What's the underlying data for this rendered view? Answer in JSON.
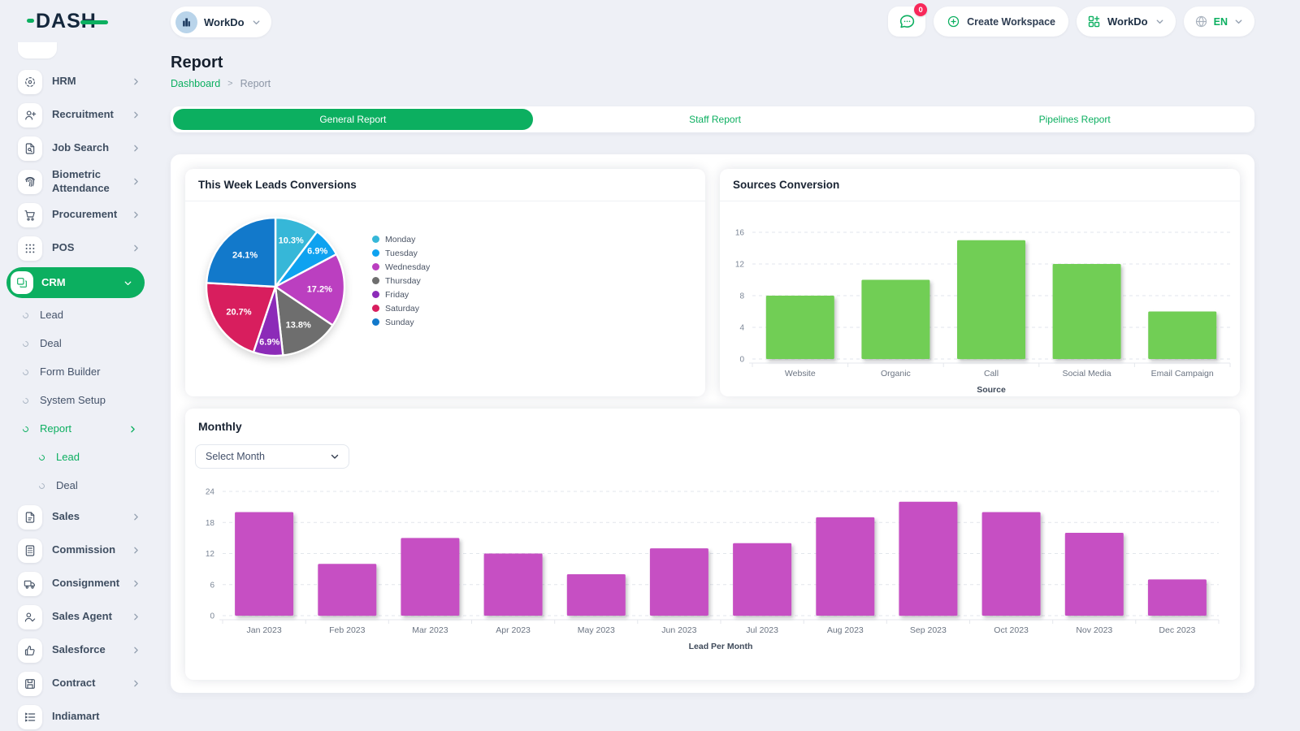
{
  "brand": {
    "logo_text": "DASH",
    "accent_green": "#0CAF60",
    "logo_navy": "#14273C"
  },
  "topbar": {
    "workspace_label": "WorkDo",
    "chat_badge": "0",
    "create_workspace_label": "Create Workspace",
    "workdo_label": "WorkDo",
    "language": "EN"
  },
  "page": {
    "title": "Report",
    "breadcrumb": [
      "Dashboard",
      "Report"
    ],
    "breadcrumb_separator": ">"
  },
  "tabs": [
    {
      "label": "General Report",
      "active": true
    },
    {
      "label": "Staff Report",
      "active": false
    },
    {
      "label": "Pipelines Report",
      "active": false
    }
  ],
  "sidebar": {
    "items": [
      {
        "type": "partial",
        "label": "",
        "icon": "blank-icon",
        "chevron": false,
        "active": false
      },
      {
        "type": "top",
        "label": "HRM",
        "icon": "target-icon",
        "chevron": true,
        "active": false
      },
      {
        "type": "top",
        "label": "Recruitment",
        "icon": "user-plus-icon",
        "chevron": true,
        "active": false
      },
      {
        "type": "top",
        "label": "Job Search",
        "icon": "file-search-icon",
        "chevron": true,
        "active": false
      },
      {
        "type": "top",
        "label": "Biometric Attendance",
        "icon": "fingerprint-icon",
        "chevron": true,
        "active": false
      },
      {
        "type": "top",
        "label": "Procurement",
        "icon": "cart-icon",
        "chevron": true,
        "active": false
      },
      {
        "type": "top",
        "label": "POS",
        "icon": "grid-dots-icon",
        "chevron": true,
        "active": false
      },
      {
        "type": "top",
        "label": "CRM",
        "icon": "layers-icon",
        "chevron": "down",
        "active": true
      },
      {
        "type": "sub",
        "label": "Lead",
        "icon": "",
        "chevron": false,
        "active": false
      },
      {
        "type": "sub",
        "label": "Deal",
        "icon": "",
        "chevron": false,
        "active": false
      },
      {
        "type": "sub",
        "label": "Form Builder",
        "icon": "",
        "chevron": false,
        "active": false
      },
      {
        "type": "sub",
        "label": "System Setup",
        "icon": "",
        "chevron": false,
        "active": false
      },
      {
        "type": "sub",
        "label": "Report",
        "icon": "",
        "chevron": true,
        "active": true
      },
      {
        "type": "subsub",
        "label": "Lead",
        "icon": "",
        "chevron": false,
        "active": true
      },
      {
        "type": "subsub",
        "label": "Deal",
        "icon": "",
        "chevron": false,
        "active": false
      },
      {
        "type": "top",
        "label": "Sales",
        "icon": "file-icon",
        "chevron": true,
        "active": false
      },
      {
        "type": "top",
        "label": "Commission",
        "icon": "calculator-icon",
        "chevron": true,
        "active": false
      },
      {
        "type": "top",
        "label": "Consignment",
        "icon": "truck-icon",
        "chevron": true,
        "active": false
      },
      {
        "type": "top",
        "label": "Sales Agent",
        "icon": "user-check-icon",
        "chevron": true,
        "active": false
      },
      {
        "type": "top",
        "label": "Salesforce",
        "icon": "thumbs-up-icon",
        "chevron": true,
        "active": false
      },
      {
        "type": "top",
        "label": "Contract",
        "icon": "save-icon",
        "chevron": true,
        "active": false
      },
      {
        "type": "top",
        "label": "Indiamart",
        "icon": "list-icon",
        "chevron": false,
        "active": false
      }
    ]
  },
  "cards": {
    "monthly": {
      "select_label": "Select Month"
    }
  },
  "chart_data": [
    {
      "type": "pie",
      "title": "This Week Leads Conversions",
      "labels": [
        "Monday",
        "Tuesday",
        "Wednesday",
        "Thursday",
        "Friday",
        "Saturday",
        "Sunday"
      ],
      "values": [
        10.3,
        6.9,
        17.2,
        13.8,
        6.9,
        20.7,
        24.1
      ],
      "value_format": "percent",
      "colors": [
        "#36B7D8",
        "#0EA2F0",
        "#BB3FC0",
        "#6E6E6E",
        "#8C2BB8",
        "#D81E5E",
        "#1279CB"
      ],
      "legend_position": "right"
    },
    {
      "type": "bar",
      "title": "Sources Conversion",
      "categories": [
        "Website",
        "Organic",
        "Call",
        "Social Media",
        "Email Campaign"
      ],
      "values": [
        8,
        10,
        15,
        12,
        6
      ],
      "xlabel": "Source",
      "ylim": [
        0,
        16
      ],
      "yticks": [
        0,
        4,
        8,
        12,
        16
      ],
      "bar_color": "#71CE55",
      "grid": "dashed-horizontal"
    },
    {
      "type": "bar",
      "title": "Monthly",
      "categories": [
        "Jan 2023",
        "Feb 2023",
        "Mar 2023",
        "Apr 2023",
        "May 2023",
        "Jun 2023",
        "Jul 2023",
        "Aug 2023",
        "Sep 2023",
        "Oct 2023",
        "Nov 2023",
        "Dec 2023"
      ],
      "values": [
        20,
        10,
        15,
        12,
        8,
        13,
        14,
        19,
        22,
        20,
        16,
        7
      ],
      "xlabel": "Lead Per Month",
      "ylim": [
        0,
        24
      ],
      "yticks": [
        0,
        6,
        12,
        18,
        24
      ],
      "bar_color": "#C64FC3",
      "grid": "dashed-horizontal"
    }
  ]
}
